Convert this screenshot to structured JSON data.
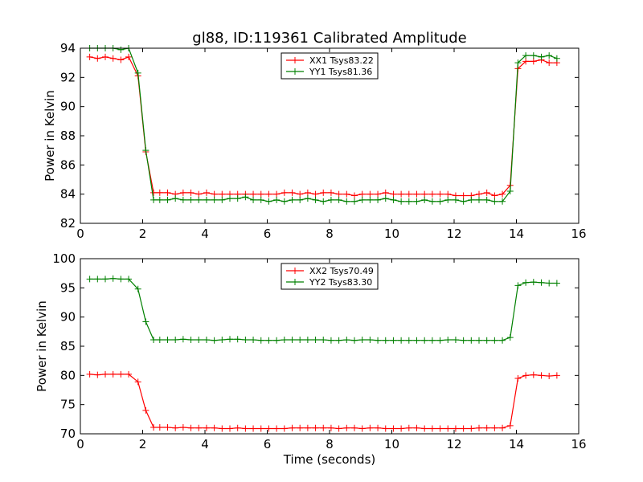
{
  "figure": {
    "title": "gl88, ID:119361 Calibrated Amplitude",
    "xlabel": "Time (seconds)"
  },
  "chart_data": [
    {
      "type": "line",
      "ylabel": "Power in Kelvin",
      "xlim": [
        0,
        16
      ],
      "ylim": [
        82,
        94
      ],
      "x_ticks": [
        0,
        2,
        4,
        6,
        8,
        10,
        12,
        14,
        16
      ],
      "y_ticks": [
        82,
        84,
        86,
        88,
        90,
        92,
        94
      ],
      "grid": false,
      "legend_position": "top-center",
      "x": [
        0.3,
        0.55,
        0.8,
        1.05,
        1.3,
        1.55,
        1.85,
        2.1,
        2.35,
        2.55,
        2.8,
        3.05,
        3.3,
        3.55,
        3.8,
        4.05,
        4.3,
        4.55,
        4.8,
        5.05,
        5.3,
        5.55,
        5.8,
        6.05,
        6.3,
        6.55,
        6.8,
        7.05,
        7.3,
        7.55,
        7.8,
        8.05,
        8.3,
        8.55,
        8.8,
        9.05,
        9.3,
        9.55,
        9.8,
        10.05,
        10.3,
        10.55,
        10.8,
        11.05,
        11.3,
        11.55,
        11.8,
        12.05,
        12.3,
        12.55,
        12.8,
        13.05,
        13.3,
        13.55,
        13.8,
        14.05,
        14.3,
        14.55,
        14.8,
        15.05,
        15.3
      ],
      "series": [
        {
          "name": "XX1 Tsys83.22",
          "color": "#ff0000",
          "values": [
            93.4,
            93.3,
            93.4,
            93.3,
            93.2,
            93.4,
            92.1,
            86.9,
            84.1,
            84.1,
            84.1,
            84.0,
            84.1,
            84.1,
            84.0,
            84.1,
            84.0,
            84.0,
            84.0,
            84.0,
            84.0,
            84.0,
            84.0,
            84.0,
            84.0,
            84.1,
            84.1,
            84.0,
            84.1,
            84.0,
            84.1,
            84.1,
            84.0,
            84.0,
            83.9,
            84.0,
            84.0,
            84.0,
            84.1,
            84.0,
            84.0,
            84.0,
            84.0,
            84.0,
            84.0,
            84.0,
            84.0,
            83.9,
            83.9,
            83.9,
            84.0,
            84.1,
            83.9,
            84.0,
            84.6,
            92.6,
            93.1,
            93.1,
            93.2,
            93.0,
            93.0
          ]
        },
        {
          "name": "YY1 Tsys81.36",
          "color": "#008000",
          "values": [
            94.0,
            94.0,
            94.0,
            94.0,
            93.9,
            94.0,
            92.3,
            87.0,
            83.6,
            83.6,
            83.6,
            83.7,
            83.6,
            83.6,
            83.6,
            83.6,
            83.6,
            83.6,
            83.7,
            83.7,
            83.8,
            83.6,
            83.6,
            83.5,
            83.6,
            83.5,
            83.6,
            83.6,
            83.7,
            83.6,
            83.5,
            83.6,
            83.6,
            83.5,
            83.5,
            83.6,
            83.6,
            83.6,
            83.7,
            83.6,
            83.5,
            83.5,
            83.5,
            83.6,
            83.5,
            83.5,
            83.6,
            83.6,
            83.5,
            83.6,
            83.6,
            83.6,
            83.5,
            83.5,
            84.2,
            93.0,
            93.5,
            93.5,
            93.4,
            93.5,
            93.3
          ]
        }
      ]
    },
    {
      "type": "line",
      "ylabel": "Power in Kelvin",
      "xlabel": "Time (seconds)",
      "xlim": [
        0,
        16
      ],
      "ylim": [
        70,
        100
      ],
      "x_ticks": [
        0,
        2,
        4,
        6,
        8,
        10,
        12,
        14,
        16
      ],
      "y_ticks": [
        70,
        75,
        80,
        85,
        90,
        95,
        100
      ],
      "grid": false,
      "legend_position": "top-center",
      "x": [
        0.3,
        0.55,
        0.8,
        1.05,
        1.3,
        1.55,
        1.85,
        2.1,
        2.35,
        2.55,
        2.8,
        3.05,
        3.3,
        3.55,
        3.8,
        4.05,
        4.3,
        4.55,
        4.8,
        5.05,
        5.3,
        5.55,
        5.8,
        6.05,
        6.3,
        6.55,
        6.8,
        7.05,
        7.3,
        7.55,
        7.8,
        8.05,
        8.3,
        8.55,
        8.8,
        9.05,
        9.3,
        9.55,
        9.8,
        10.05,
        10.3,
        10.55,
        10.8,
        11.05,
        11.3,
        11.55,
        11.8,
        12.05,
        12.3,
        12.55,
        12.8,
        13.05,
        13.3,
        13.55,
        13.8,
        14.05,
        14.3,
        14.55,
        14.8,
        15.05,
        15.3
      ],
      "series": [
        {
          "name": "XX2 Tsys70.49",
          "color": "#ff0000",
          "values": [
            80.2,
            80.1,
            80.2,
            80.2,
            80.2,
            80.2,
            78.9,
            74.0,
            71.1,
            71.1,
            71.1,
            71.0,
            71.1,
            71.0,
            71.0,
            71.0,
            71.0,
            70.9,
            70.9,
            71.0,
            70.9,
            70.9,
            70.9,
            70.9,
            70.9,
            70.9,
            71.0,
            71.0,
            71.0,
            71.0,
            71.0,
            71.0,
            70.9,
            71.0,
            71.0,
            70.9,
            71.0,
            71.0,
            70.9,
            70.9,
            70.9,
            71.0,
            71.0,
            70.9,
            70.9,
            70.9,
            70.9,
            70.9,
            70.9,
            70.9,
            71.0,
            71.0,
            71.0,
            71.0,
            71.4,
            79.5,
            80.0,
            80.1,
            80.0,
            79.9,
            80.0
          ]
        },
        {
          "name": "YY2 Tsys83.30",
          "color": "#008000",
          "values": [
            96.5,
            96.5,
            96.5,
            96.6,
            96.5,
            96.5,
            94.8,
            89.2,
            86.1,
            86.1,
            86.1,
            86.1,
            86.2,
            86.1,
            86.1,
            86.1,
            86.0,
            86.1,
            86.2,
            86.2,
            86.1,
            86.1,
            86.0,
            86.0,
            86.0,
            86.1,
            86.1,
            86.1,
            86.1,
            86.1,
            86.1,
            86.0,
            86.0,
            86.1,
            86.0,
            86.1,
            86.1,
            86.0,
            86.0,
            86.0,
            86.0,
            86.0,
            86.0,
            86.0,
            86.0,
            86.0,
            86.1,
            86.1,
            86.0,
            86.0,
            86.0,
            86.0,
            86.0,
            86.0,
            86.5,
            95.4,
            95.9,
            96.0,
            95.9,
            95.8,
            95.8
          ]
        }
      ]
    }
  ]
}
